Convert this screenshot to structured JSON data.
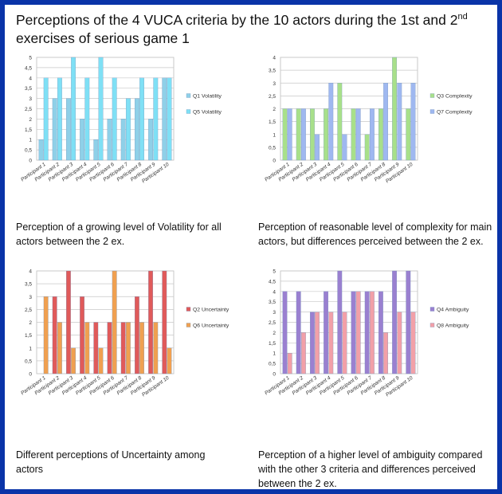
{
  "page": {
    "title_part1": "Perceptions of the 4 VUCA criteria by the 10 actors during the 1st and 2",
    "title_sup": "nd",
    "title_part2": " exercises of serious game 1"
  },
  "captions": {
    "volatility": "Perception of a growing level of Volatility for all actors between the 2 ex.",
    "complexity": "Perception of reasonable level of complexity for main actors, but differences perceived between the 2 ex.",
    "uncertainty": "Different perceptions of Uncertainty among actors",
    "ambiguity": "Perception of a higher level of ambiguity compared with the other 3 criteria and differences perceived between the 2 ex."
  },
  "colors": {
    "frame": "#0a34a8",
    "grid": "#c8c8c8",
    "axis_text": "#333333"
  },
  "chart_data": [
    {
      "type": "bar",
      "categories": [
        "Participant 1",
        "Participant 2",
        "Participant 3",
        "Participant 4",
        "Participant 5",
        "Participant 6",
        "Participant 7",
        "Participant 8",
        "Participant 9",
        "Participant 10"
      ],
      "series": [
        {
          "name": "Q1 Volatility",
          "color": "#8fd0e8",
          "values": [
            1,
            3,
            3,
            2,
            1,
            2,
            2,
            3,
            2,
            4
          ]
        },
        {
          "name": "Q5 Volatility",
          "color": "#7fe0f5",
          "values": [
            4,
            4,
            5,
            4,
            5,
            4,
            3,
            4,
            4,
            4
          ]
        }
      ],
      "yticks": [
        "0",
        "0,5",
        "1",
        "1,5",
        "2",
        "2,5",
        "3",
        "3,5",
        "4",
        "4,5",
        "5"
      ],
      "ylim": [
        0,
        5
      ],
      "legend": "right"
    },
    {
      "type": "bar",
      "categories": [
        "Participant 1",
        "Participant 2",
        "Participant 3",
        "Participant 4",
        "Participant 5",
        "Participant 6",
        "Participant 7",
        "Participant 8",
        "Participant 9",
        "Participant 10"
      ],
      "series": [
        {
          "name": "Q3 Complexity",
          "color": "#a8e08a",
          "values": [
            2,
            2,
            2,
            2,
            3,
            2,
            1,
            2,
            4,
            2
          ]
        },
        {
          "name": "Q7 Complexity",
          "color": "#9fb8f0",
          "values": [
            2,
            2,
            1,
            3,
            1,
            2,
            2,
            3,
            3,
            3
          ]
        }
      ],
      "yticks": [
        "0",
        "0,5",
        "1",
        "1,5",
        "2",
        "2,5",
        "3",
        "3,5",
        "4"
      ],
      "ylim": [
        0,
        4
      ],
      "legend": "right"
    },
    {
      "type": "bar",
      "categories": [
        "Participant 1",
        "Participant 2",
        "Participant 3",
        "Participant 4",
        "Participant 5",
        "Participant 6",
        "Participant 7",
        "Participant 8",
        "Participant 9",
        "Participant 10"
      ],
      "series": [
        {
          "name": "Q2 Uncertainty",
          "color": "#e05a5a",
          "values": [
            0,
            3,
            4,
            3,
            2,
            2,
            2,
            3,
            4,
            4
          ]
        },
        {
          "name": "Q6 Uncertainty",
          "color": "#f0a050",
          "values": [
            3,
            2,
            1,
            2,
            1,
            4,
            2,
            2,
            2,
            1
          ]
        }
      ],
      "yticks": [
        "0",
        "0,5",
        "1",
        "1,5",
        "2",
        "2,5",
        "3",
        "3,5",
        "4"
      ],
      "ylim": [
        0,
        4
      ],
      "legend": "right"
    },
    {
      "type": "bar",
      "categories": [
        "Participant 1",
        "Participant 2",
        "Participant 3",
        "Participant 4",
        "Participant 5",
        "Participant 6",
        "Participant 7",
        "Participant 8",
        "Participant 9",
        "Participant 10"
      ],
      "series": [
        {
          "name": "Q4 Ambiguity",
          "color": "#9a80d0",
          "values": [
            4,
            4,
            3,
            4,
            5,
            4,
            4,
            4,
            5,
            5
          ]
        },
        {
          "name": "Q8 Ambiguity",
          "color": "#f2a0a8",
          "values": [
            1,
            2,
            3,
            3,
            3,
            4,
            4,
            2,
            3,
            3
          ]
        }
      ],
      "yticks": [
        "0",
        "0,5",
        "1",
        "1,5",
        "2",
        "2,5",
        "3",
        "3,5",
        "4",
        "4,5",
        "5"
      ],
      "ylim": [
        0,
        5
      ],
      "legend": "right"
    }
  ]
}
